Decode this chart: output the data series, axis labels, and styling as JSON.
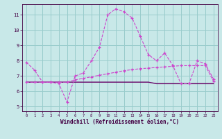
{
  "xlabel": "Windchill (Refroidissement éolien,°C)",
  "background_color": "#c8e8e8",
  "grid_color": "#99cccc",
  "line_color1": "#cc44cc",
  "line_color2": "#cc44cc",
  "line_color3": "#660066",
  "x_ticks": [
    0,
    1,
    2,
    3,
    4,
    5,
    6,
    7,
    8,
    9,
    10,
    11,
    12,
    13,
    14,
    15,
    16,
    17,
    18,
    19,
    20,
    21,
    22,
    23
  ],
  "y_ticks": [
    5,
    6,
    7,
    8,
    9,
    10,
    11
  ],
  "ylim": [
    4.7,
    11.7
  ],
  "xlim": [
    -0.5,
    23.5
  ],
  "series1_x": [
    0,
    1,
    2,
    3,
    4,
    5,
    6,
    7,
    8,
    9,
    10,
    11,
    12,
    13,
    14,
    15,
    16,
    17,
    18,
    19,
    20,
    21,
    22,
    23
  ],
  "series1_y": [
    7.9,
    7.4,
    6.6,
    6.6,
    6.5,
    5.3,
    7.0,
    7.2,
    8.0,
    8.9,
    11.0,
    11.4,
    11.2,
    10.8,
    9.6,
    8.4,
    8.0,
    8.5,
    7.7,
    6.5,
    6.5,
    8.0,
    7.8,
    6.8
  ],
  "series2_x": [
    0,
    1,
    2,
    3,
    4,
    5,
    6,
    7,
    8,
    9,
    10,
    11,
    12,
    13,
    14,
    15,
    16,
    17,
    18,
    19,
    20,
    21,
    22,
    23
  ],
  "series2_y": [
    6.6,
    6.6,
    6.6,
    6.6,
    6.6,
    6.6,
    6.75,
    6.85,
    6.95,
    7.05,
    7.15,
    7.25,
    7.35,
    7.42,
    7.48,
    7.52,
    7.56,
    7.6,
    7.64,
    7.68,
    7.68,
    7.68,
    7.68,
    6.65
  ],
  "series3_x": [
    0,
    1,
    2,
    3,
    4,
    5,
    6,
    7,
    8,
    9,
    10,
    11,
    12,
    13,
    14,
    15,
    16,
    17,
    18,
    19,
    20,
    21,
    22,
    23
  ],
  "series3_y": [
    6.6,
    6.6,
    6.6,
    6.6,
    6.6,
    6.6,
    6.6,
    6.6,
    6.6,
    6.6,
    6.6,
    6.6,
    6.6,
    6.6,
    6.6,
    6.6,
    6.5,
    6.5,
    6.5,
    6.5,
    6.5,
    6.5,
    6.5,
    6.5
  ]
}
